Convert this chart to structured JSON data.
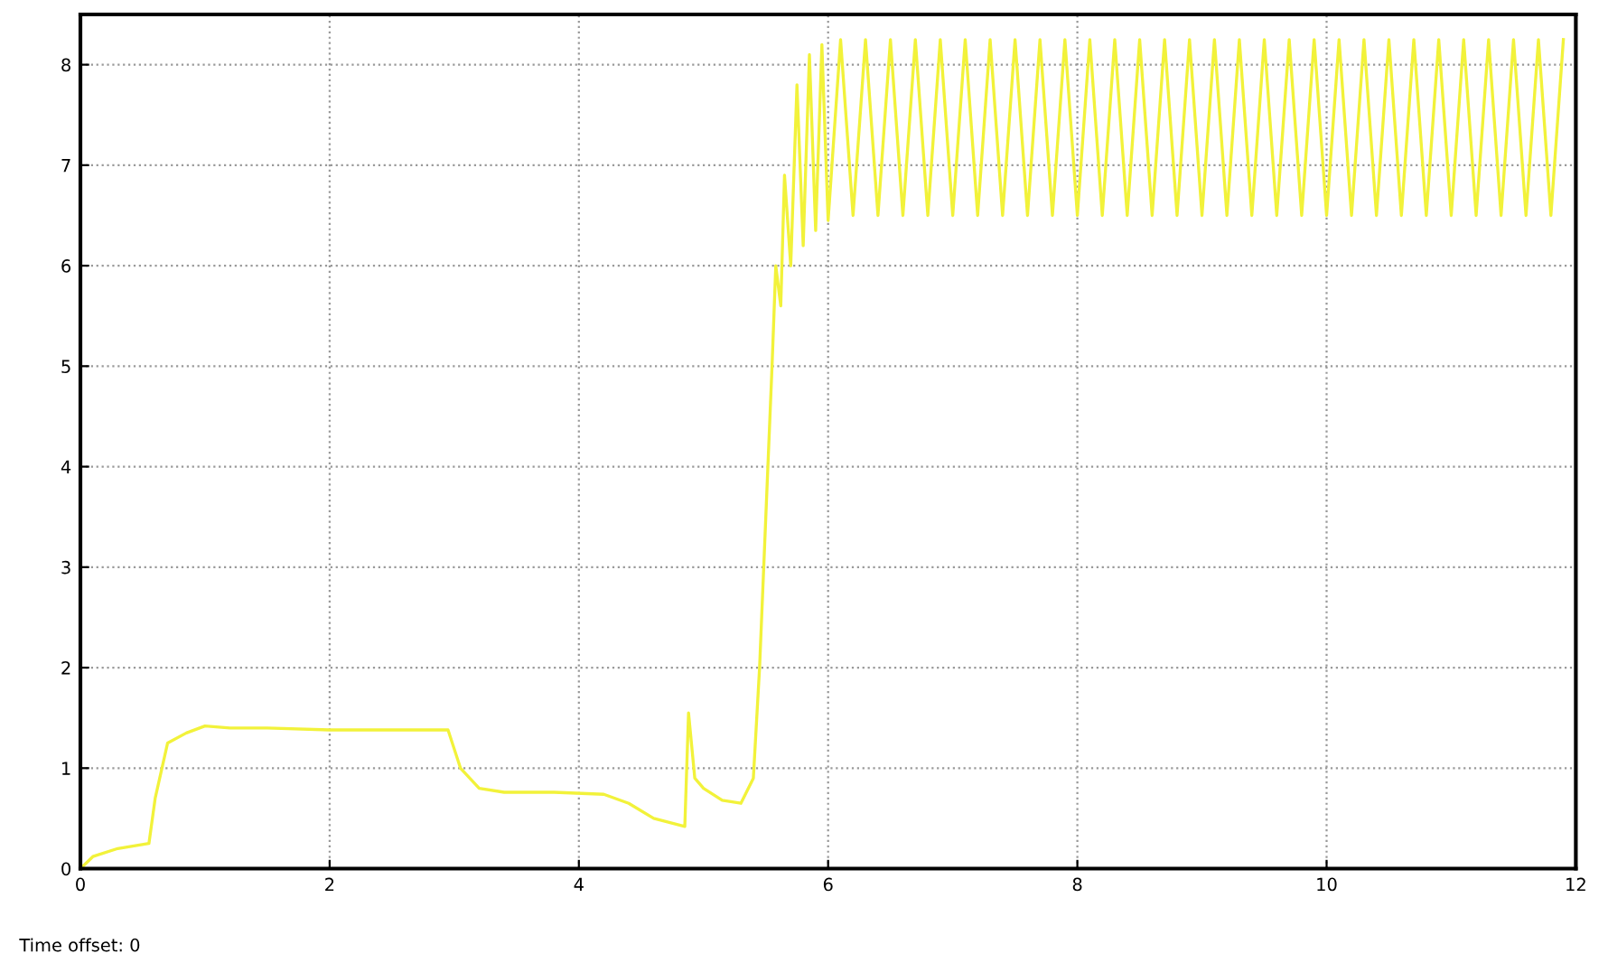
{
  "chart_data": {
    "type": "line",
    "series": [
      {
        "color": "#f2f23a",
        "x": [
          0,
          0.1,
          0.3,
          0.55,
          0.6,
          0.7,
          0.85,
          1.0,
          1.2,
          1.5,
          2.0,
          2.5,
          2.95,
          3.05,
          3.2,
          3.4,
          3.8,
          4.2,
          4.4,
          4.6,
          4.85,
          4.88,
          4.93,
          5.0,
          5.15,
          5.3,
          5.4,
          5.45,
          5.5,
          5.55,
          5.58,
          5.62,
          5.65,
          5.7,
          5.75,
          5.8,
          5.85,
          5.9,
          5.95,
          6.0,
          6.1,
          6.2,
          6.3,
          6.4,
          6.5,
          6.6,
          6.7,
          6.8,
          6.9,
          7.0,
          7.1,
          7.2,
          7.3,
          7.4,
          7.5,
          7.6,
          7.7,
          7.8,
          7.9,
          8.0,
          8.1,
          8.2,
          8.3,
          8.4,
          8.5,
          8.6,
          8.7,
          8.8,
          8.9,
          9.0,
          9.1,
          9.2,
          9.3,
          9.4,
          9.5,
          9.6,
          9.7,
          9.8,
          9.9,
          10.0,
          10.1,
          10.2,
          10.3,
          10.4,
          10.5,
          10.6,
          10.7,
          10.8,
          10.9,
          11.0,
          11.1,
          11.2,
          11.3,
          11.4,
          11.5,
          11.6,
          11.7,
          11.8,
          11.9
        ],
        "values": [
          0,
          0.12,
          0.2,
          0.25,
          0.7,
          1.25,
          1.35,
          1.42,
          1.4,
          1.4,
          1.38,
          1.38,
          1.38,
          1.0,
          0.8,
          0.76,
          0.76,
          0.74,
          0.65,
          0.5,
          0.42,
          1.55,
          0.9,
          0.8,
          0.68,
          0.65,
          0.9,
          2.0,
          3.5,
          5.0,
          6.0,
          5.6,
          6.9,
          6.0,
          7.8,
          6.2,
          8.1,
          6.35,
          8.2,
          6.45,
          8.25,
          6.5,
          8.25,
          6.5,
          8.25,
          6.5,
          8.25,
          6.5,
          8.25,
          6.5,
          8.25,
          6.5,
          8.25,
          6.5,
          8.25,
          6.5,
          8.25,
          6.5,
          8.25,
          6.5,
          8.25,
          6.5,
          8.25,
          6.5,
          8.25,
          6.5,
          8.25,
          6.5,
          8.25,
          6.5,
          8.25,
          6.5,
          8.25,
          6.5,
          8.25,
          6.5,
          8.25,
          6.5,
          8.25,
          6.5,
          8.25,
          6.5,
          8.25,
          6.5,
          8.25,
          6.5,
          8.25,
          6.5,
          8.25,
          6.5,
          8.25,
          6.5,
          8.25,
          6.5,
          8.25,
          6.5,
          8.25,
          6.5,
          8.25
        ]
      }
    ],
    "xlim": [
      0,
      12
    ],
    "xticks": [
      0,
      2,
      4,
      6,
      8,
      10,
      12
    ],
    "ylim": [
      0,
      8.5
    ],
    "yticks": [
      0,
      1,
      2,
      3,
      4,
      5,
      6,
      7,
      8
    ],
    "grid": true,
    "line_style": "solid",
    "annotations": [
      "Time offset: 0"
    ]
  }
}
